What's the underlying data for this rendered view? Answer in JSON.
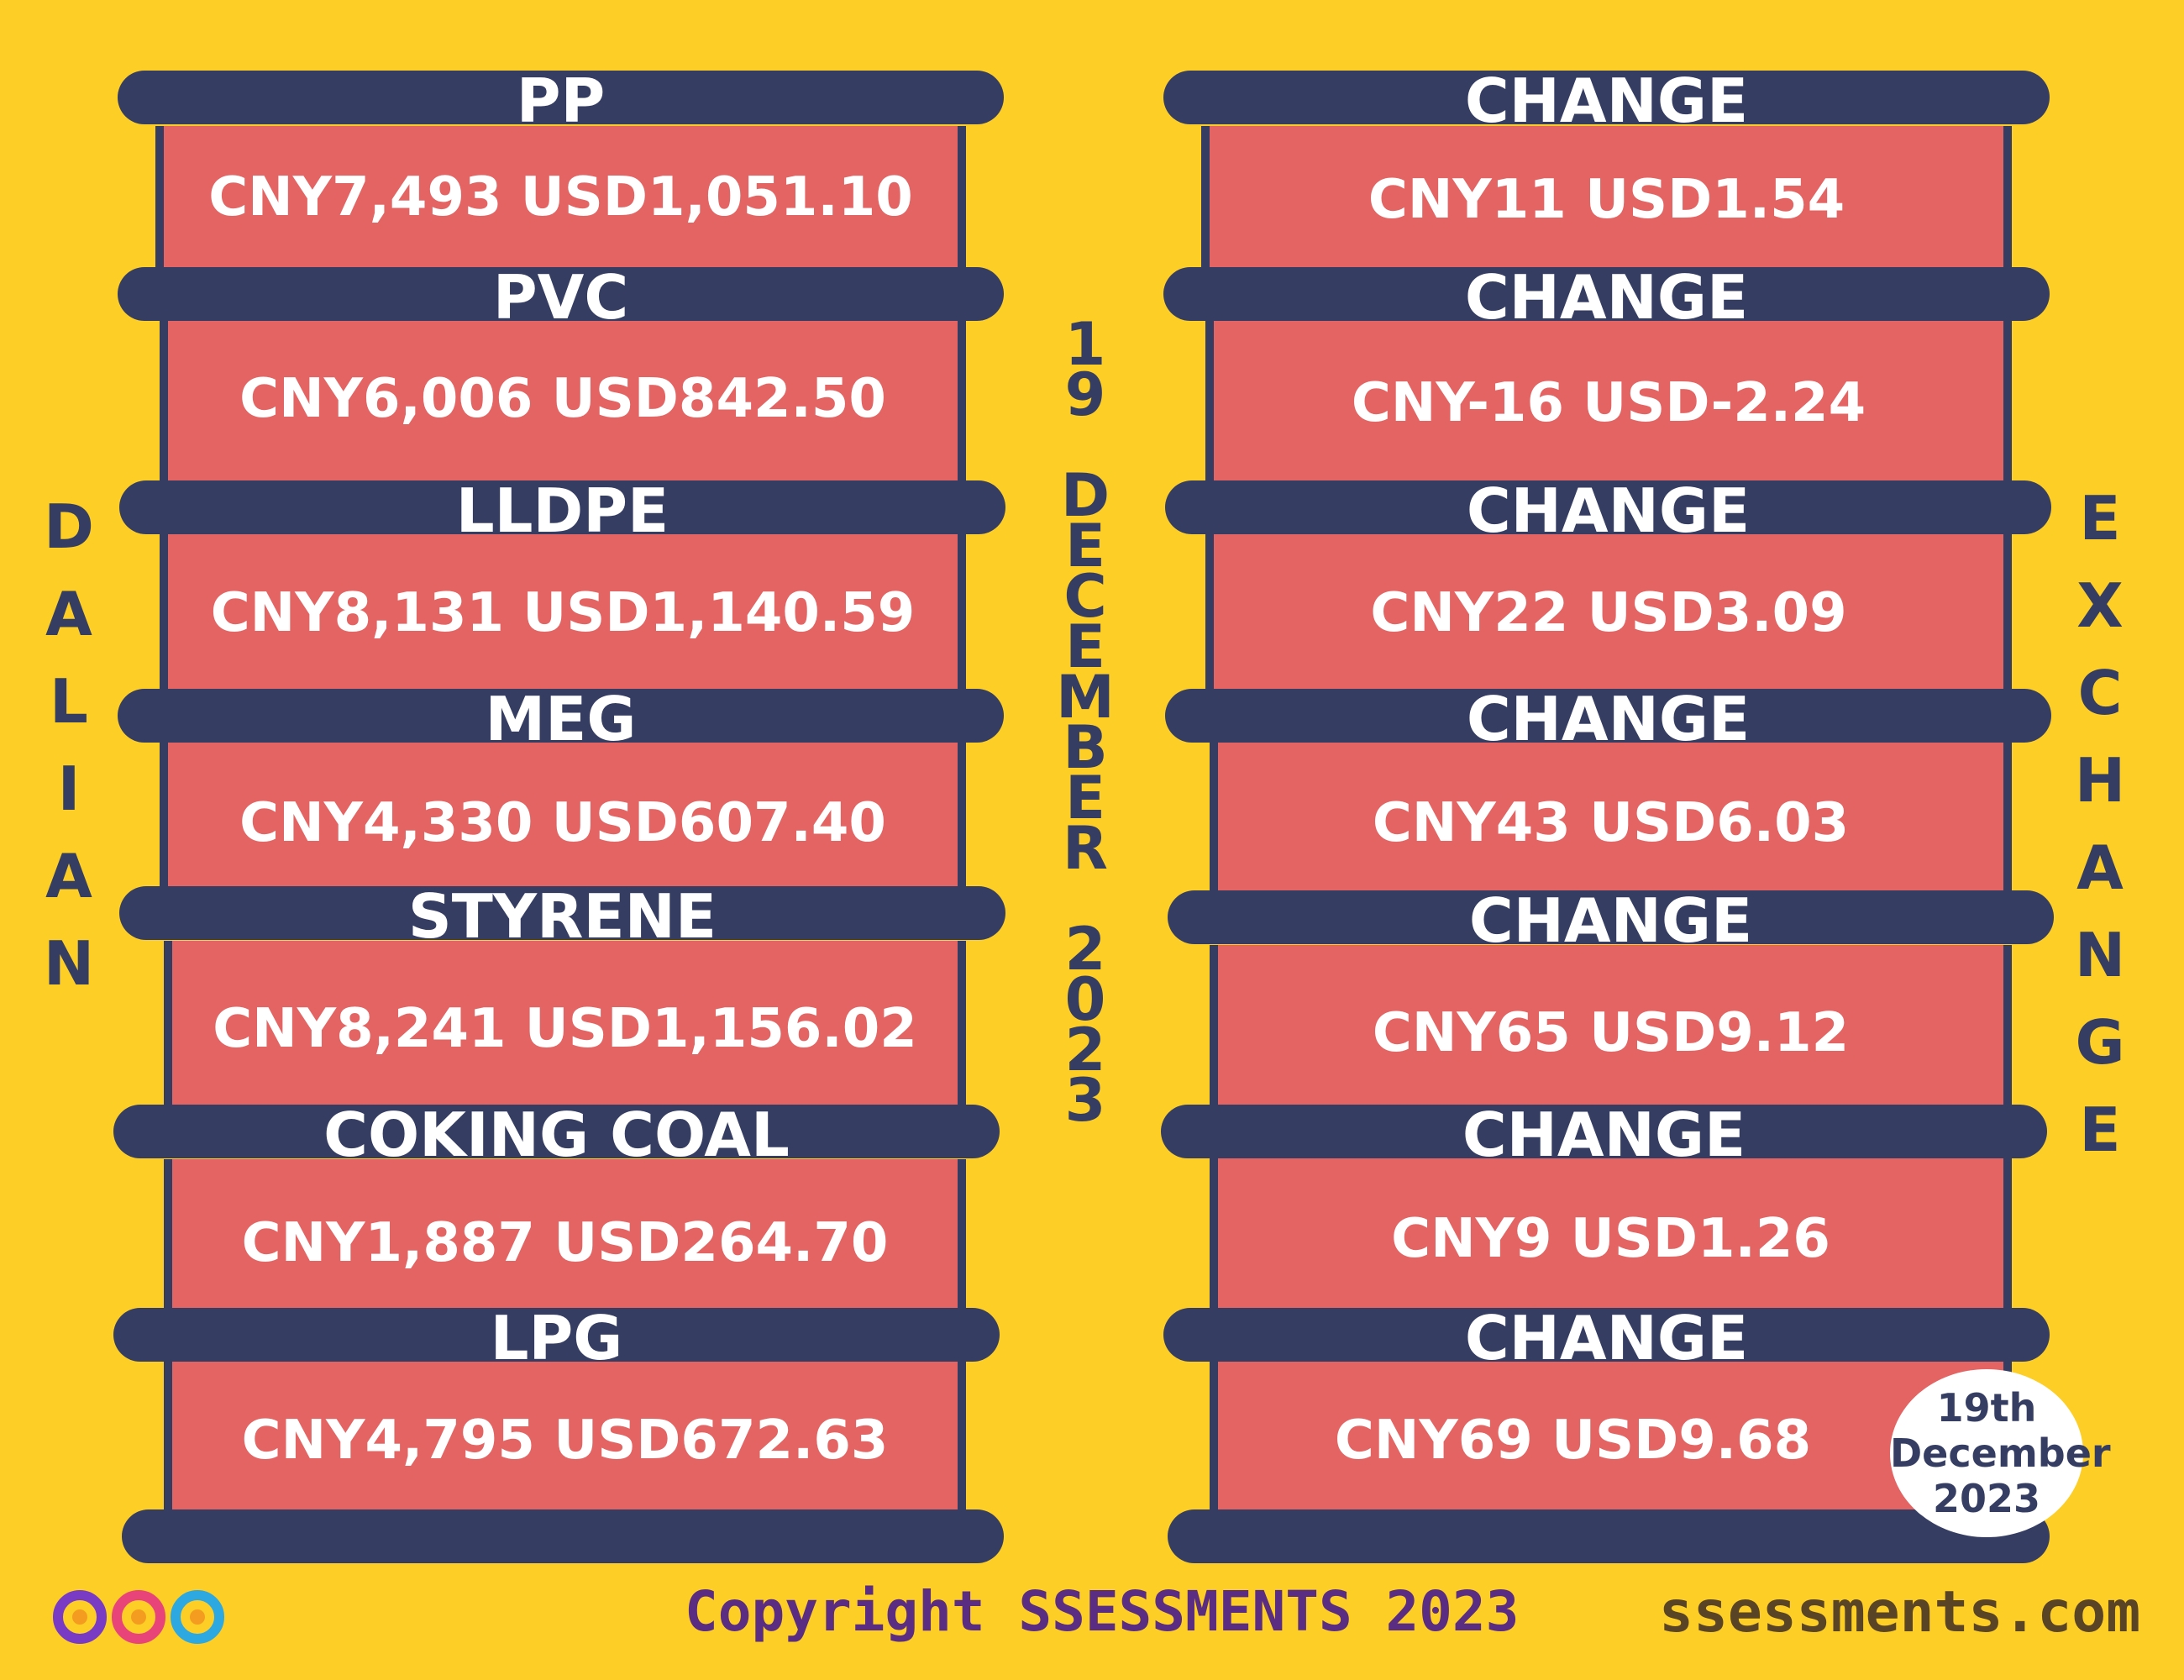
{
  "left_title_letters": [
    "D",
    "A",
    "L",
    "I",
    "A",
    "N"
  ],
  "right_title_letters": [
    "E",
    "X",
    "C",
    "H",
    "A",
    "N",
    "G",
    "E"
  ],
  "center_date_letters": [
    "1",
    "9",
    "",
    "D",
    "E",
    "C",
    "E",
    "M",
    "B",
    "E",
    "R",
    "",
    "2",
    "0",
    "2",
    "3"
  ],
  "products": [
    {
      "name": "PP",
      "value": "CNY7,493  USD1,051.10",
      "change_label": "CHANGE",
      "change": "CNY11  USD1.54"
    },
    {
      "name": "PVC",
      "value": "CNY6,006  USD842.50",
      "change_label": "CHANGE",
      "change": "CNY-16  USD-2.24"
    },
    {
      "name": "LLDPE",
      "value": "CNY8,131  USD1,140.59",
      "change_label": "CHANGE",
      "change": "CNY22  USD3.09"
    },
    {
      "name": "MEG",
      "value": "CNY4,330  USD607.40",
      "change_label": "CHANGE",
      "change": "CNY43  USD6.03"
    },
    {
      "name": "STYRENE",
      "value": "CNY8,241  USD1,156.02",
      "change_label": "CHANGE",
      "change": "CNY65  USD9.12"
    },
    {
      "name": "COKING COAL",
      "value": "CNY1,887  USD264.70",
      "change_label": "CHANGE",
      "change": "CNY9  USD1.26"
    },
    {
      "name": "LPG",
      "value": "CNY4,795  USD672.63",
      "change_label": "CHANGE",
      "change": "CNY69  USD9.68"
    }
  ],
  "badge": {
    "line1": "19th",
    "line2": "December",
    "line3": "2023"
  },
  "footer": {
    "copyright": "Copyright SSESSMENTS 2023",
    "site": "ssessments.com"
  },
  "colors": {
    "background": "#FDCE26",
    "bar": "#353E62",
    "panel": "#E36462",
    "text_dark": "#353E62",
    "footer_purple": "#5A2C82"
  },
  "logo_icon": "infinity-logo-icon"
}
